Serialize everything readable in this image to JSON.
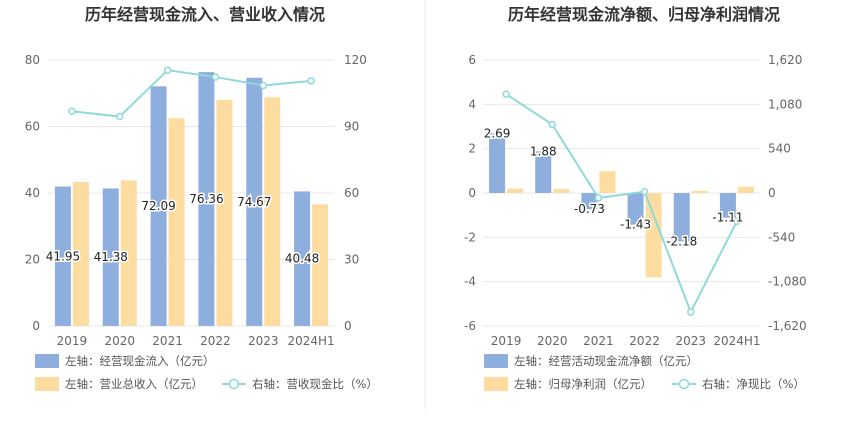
{
  "chart_data": [
    {
      "type": "bar",
      "title": "历年经营现金流入、营业收入情况",
      "categories": [
        "2019",
        "2020",
        "2021",
        "2022",
        "2023",
        "2024H1"
      ],
      "left_axis": {
        "ylim": [
          0,
          80
        ],
        "ticks": [
          "0",
          "20",
          "40",
          "60",
          "80"
        ]
      },
      "right_axis": {
        "ylim": [
          0,
          120
        ],
        "ticks": [
          "0",
          "30",
          "60",
          "90",
          "120"
        ]
      },
      "series": [
        {
          "name": "左轴：经营现金流入（亿元）",
          "kind": "bar",
          "axis": "left",
          "color": "#8eaedd",
          "values": [
            41.95,
            41.38,
            72.09,
            76.36,
            74.67,
            40.48
          ],
          "labels": [
            "41.95",
            "41.38",
            "72.09",
            "76.36",
            "74.67",
            "40.48"
          ]
        },
        {
          "name": "左轴：营业总收入（亿元）",
          "kind": "bar",
          "axis": "left",
          "color": "#fddca0",
          "values": [
            43.3,
            43.8,
            62.5,
            68.0,
            68.8,
            36.6
          ]
        },
        {
          "name": "右轴：营收现金比（%）",
          "kind": "line",
          "axis": "right",
          "color": "#8fd9dc",
          "values": [
            96.9,
            94.5,
            115.4,
            112.3,
            108.5,
            110.6
          ]
        }
      ],
      "legend_position": "bottom-left",
      "grid": true
    },
    {
      "type": "bar",
      "title": "历年经营现金流净额、归母净利润情况",
      "categories": [
        "2019",
        "2020",
        "2021",
        "2022",
        "2023",
        "2024H1"
      ],
      "left_axis": {
        "ylim": [
          -6,
          6
        ],
        "ticks": [
          "-6",
          "-4",
          "-2",
          "0",
          "2",
          "4",
          "6"
        ]
      },
      "right_axis": {
        "ylim": [
          -1620,
          1620
        ],
        "ticks": [
          "-1,620",
          "-1,080",
          "-540",
          "0",
          "540",
          "1,080",
          "1,620"
        ]
      },
      "series": [
        {
          "name": "左轴：经营活动现金流净额（亿元）",
          "kind": "bar",
          "axis": "left",
          "color": "#8eaedd",
          "values": [
            2.69,
            1.88,
            -0.73,
            -1.43,
            -2.18,
            -1.11
          ],
          "labels": [
            "2.69",
            "1.88",
            "-0.73",
            "-1.43",
            "-2.18",
            "-1.11"
          ]
        },
        {
          "name": "左轴：归母净利润（亿元）",
          "kind": "bar",
          "axis": "left",
          "color": "#fddca0",
          "values": [
            0.2,
            0.18,
            0.98,
            -3.8,
            0.1,
            0.28
          ]
        },
        {
          "name": "右轴：净现比（%）",
          "kind": "line",
          "axis": "right",
          "color": "#8fd9dc",
          "values": [
            1205,
            835,
            -60,
            15,
            -1450,
            -345
          ]
        }
      ],
      "legend_position": "bottom-left",
      "grid": true
    }
  ]
}
